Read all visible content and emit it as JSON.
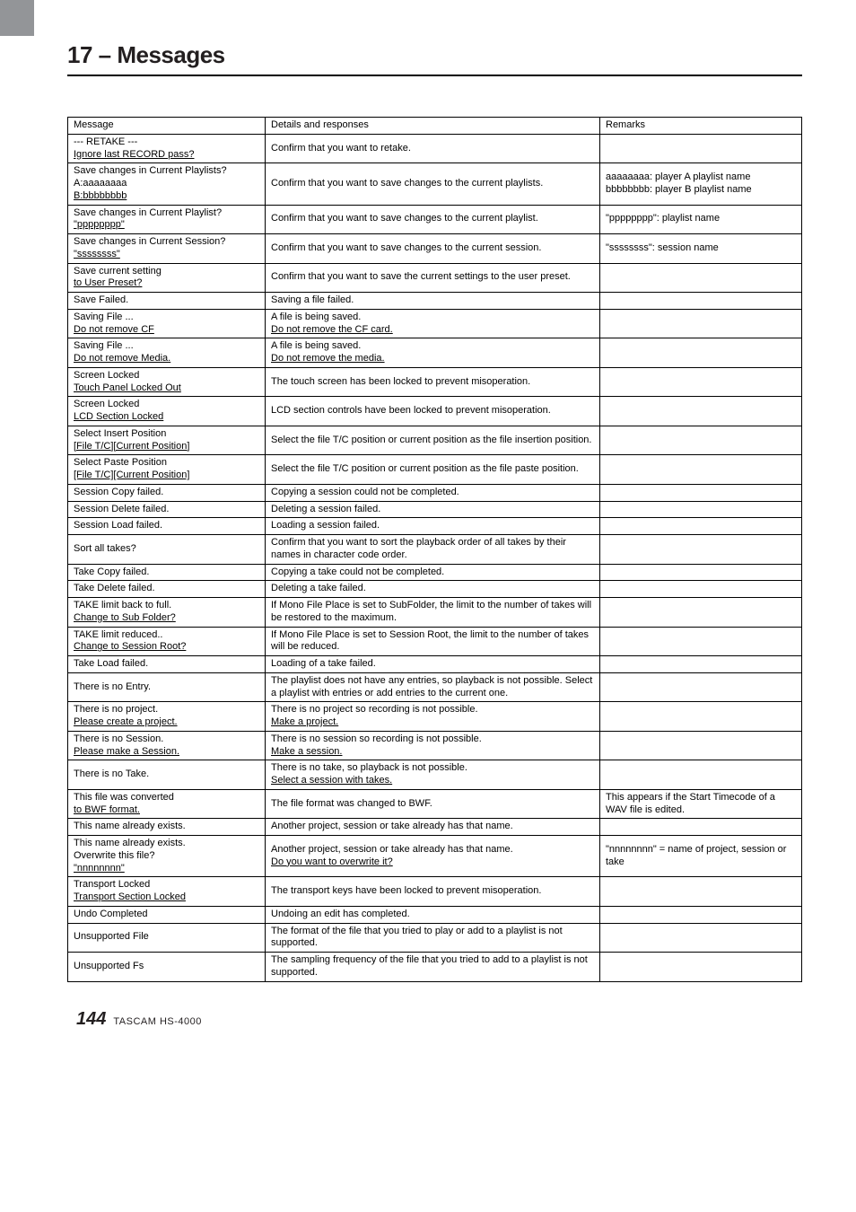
{
  "chapter": {
    "title": "17 – Messages"
  },
  "table": {
    "headers": {
      "message": "Message",
      "details": "Details and responses",
      "remarks": "Remarks"
    },
    "rows": [
      {
        "msg_l1": "--- RETAKE ---",
        "msg_l2": "Ignore last RECORD pass?",
        "det": "Confirm that you want to retake.",
        "rem": ""
      },
      {
        "msg_l1": "Save changes in Current Playlists?",
        "msg_l2": "A:aaaaaaaa",
        "msg_l3": "B:bbbbbbbb",
        "det": "Confirm that you want to save changes to the current playlists.",
        "rem_l1": "aaaaaaaa: player A playlist name",
        "rem_l2": "bbbbbbbb: player B playlist name"
      },
      {
        "msg_l1": "Save changes in Current Playlist?",
        "msg_l2": "\"pppppppp\"",
        "det": "Confirm that you want to save changes to the current playlist.",
        "rem": "\"pppppppp\": playlist name"
      },
      {
        "msg_l1": "Save changes in Current Session?",
        "msg_l2": "\"ssssssss\"",
        "det": "Confirm that you want to save changes to the current session.",
        "rem": "\"ssssssss\": session name"
      },
      {
        "msg_l1": "Save current setting",
        "msg_l2": "to User Preset?",
        "det": "Confirm that you want to save the current settings to the user preset.",
        "rem": ""
      },
      {
        "msg": "Save Failed.",
        "det": "Saving a file failed.",
        "rem": ""
      },
      {
        "msg_l1": "Saving File ...",
        "msg_l2": "Do not remove CF",
        "det_l1": "A file is being saved.",
        "det_l2": "Do not remove the CF card.",
        "rem": ""
      },
      {
        "msg_l1": "Saving File ...",
        "msg_l2": "Do not remove Media.",
        "det_l1": "A file is being saved.",
        "det_l2": "Do not remove the media.",
        "rem": ""
      },
      {
        "msg_l1": "Screen Locked",
        "msg_l2": "Touch Panel Locked Out",
        "det": "The touch screen has been locked to prevent misoperation.",
        "rem": ""
      },
      {
        "msg_l1": "Screen Locked",
        "msg_l2": "LCD Section Locked",
        "det": "LCD section controls have been locked to prevent misoperation.",
        "rem": ""
      },
      {
        "msg_l1": "Select Insert Position",
        "msg_l2": "[File T/C][Current Position]",
        "det": "Select the file T/C position or current position as the file insertion position.",
        "rem": ""
      },
      {
        "msg_l1": "Select Paste Position",
        "msg_l2": "[File T/C][Current Position]",
        "det": "Select the file T/C position or current position as the file paste position.",
        "rem": ""
      },
      {
        "msg": "Session Copy failed.",
        "det": "Copying a session could not be completed.",
        "rem": ""
      },
      {
        "msg": "Session Delete failed.",
        "det": "Deleting a session failed.",
        "rem": ""
      },
      {
        "msg": "Session Load failed.",
        "det": "Loading a session failed.",
        "rem": ""
      },
      {
        "msg": "Sort all takes?",
        "det": "Confirm that you want to sort the playback order of all takes by their names in character code order.",
        "rem": ""
      },
      {
        "msg": "Take Copy failed.",
        "det": "Copying a take could not be completed.",
        "rem": ""
      },
      {
        "msg": "Take Delete failed.",
        "det": "Deleting a take failed.",
        "rem": ""
      },
      {
        "msg_l1": "TAKE limit back to full.",
        "msg_l2": "Change to Sub Folder?",
        "det": "If Mono File Place is set to SubFolder, the limit to the number of takes will be restored to the maximum.",
        "rem": ""
      },
      {
        "msg_l1": "TAKE limit reduced..",
        "msg_l2": "Change to Session Root?",
        "det": "If Mono File Place is set to Session Root, the limit to the number of takes will be reduced.",
        "rem": ""
      },
      {
        "msg": "Take Load failed.",
        "det": "Loading of a take failed.",
        "rem": ""
      },
      {
        "msg": "There is no Entry.",
        "det": "The playlist does not have any entries, so playback is not possible. Select a playlist with entries or add entries to the current one.",
        "rem": ""
      },
      {
        "msg_l1": "There is no project.",
        "msg_l2": "Please create a project.",
        "det_l1": "There is no project so recording is not possible.",
        "det_l2": "Make a project.",
        "rem": ""
      },
      {
        "msg_l1": "There is no Session.",
        "msg_l2": "Please make a Session.",
        "det_l1": "There is no session so recording is not possible.",
        "det_l2": "Make a session.",
        "rem": ""
      },
      {
        "msg": "There is no Take.",
        "det_l1": "There is no take, so playback is not possible.",
        "det_l2": "Select a session with takes.",
        "rem": ""
      },
      {
        "msg_l1": "This file was converted",
        "msg_l2": "to BWF format.",
        "det": "The file format was changed to BWF.",
        "rem": "This appears if the Start Timecode of a WAV file is edited."
      },
      {
        "msg": "This name already exists.",
        "det": "Another project, session or take already has that name.",
        "rem": ""
      },
      {
        "msg_l1": "This name already exists.",
        "msg_l2": "Overwrite this file?",
        "msg_l3": "\"nnnnnnnn\"",
        "det_l1": "Another project, session or take already has that name.",
        "det_l2": "Do you want to overwrite it?",
        "rem": "\"nnnnnnnn\" = name of project, session or take"
      },
      {
        "msg_l1": "Transport Locked",
        "msg_l2": "Transport Section Locked",
        "det": "The transport keys have been locked to prevent misoperation.",
        "rem": ""
      },
      {
        "msg": "Undo Completed",
        "det": "Undoing an edit has completed.",
        "rem": ""
      },
      {
        "msg": "Unsupported File",
        "det": "The format of the file that you tried to play or add to a playlist is not supported.",
        "rem": ""
      },
      {
        "msg": "Unsupported Fs",
        "det": "The sampling frequency of the file that you tried to add to a playlist is not supported.",
        "rem": ""
      }
    ]
  },
  "footer": {
    "page": "144",
    "model": "TASCAM  HS-4000"
  }
}
